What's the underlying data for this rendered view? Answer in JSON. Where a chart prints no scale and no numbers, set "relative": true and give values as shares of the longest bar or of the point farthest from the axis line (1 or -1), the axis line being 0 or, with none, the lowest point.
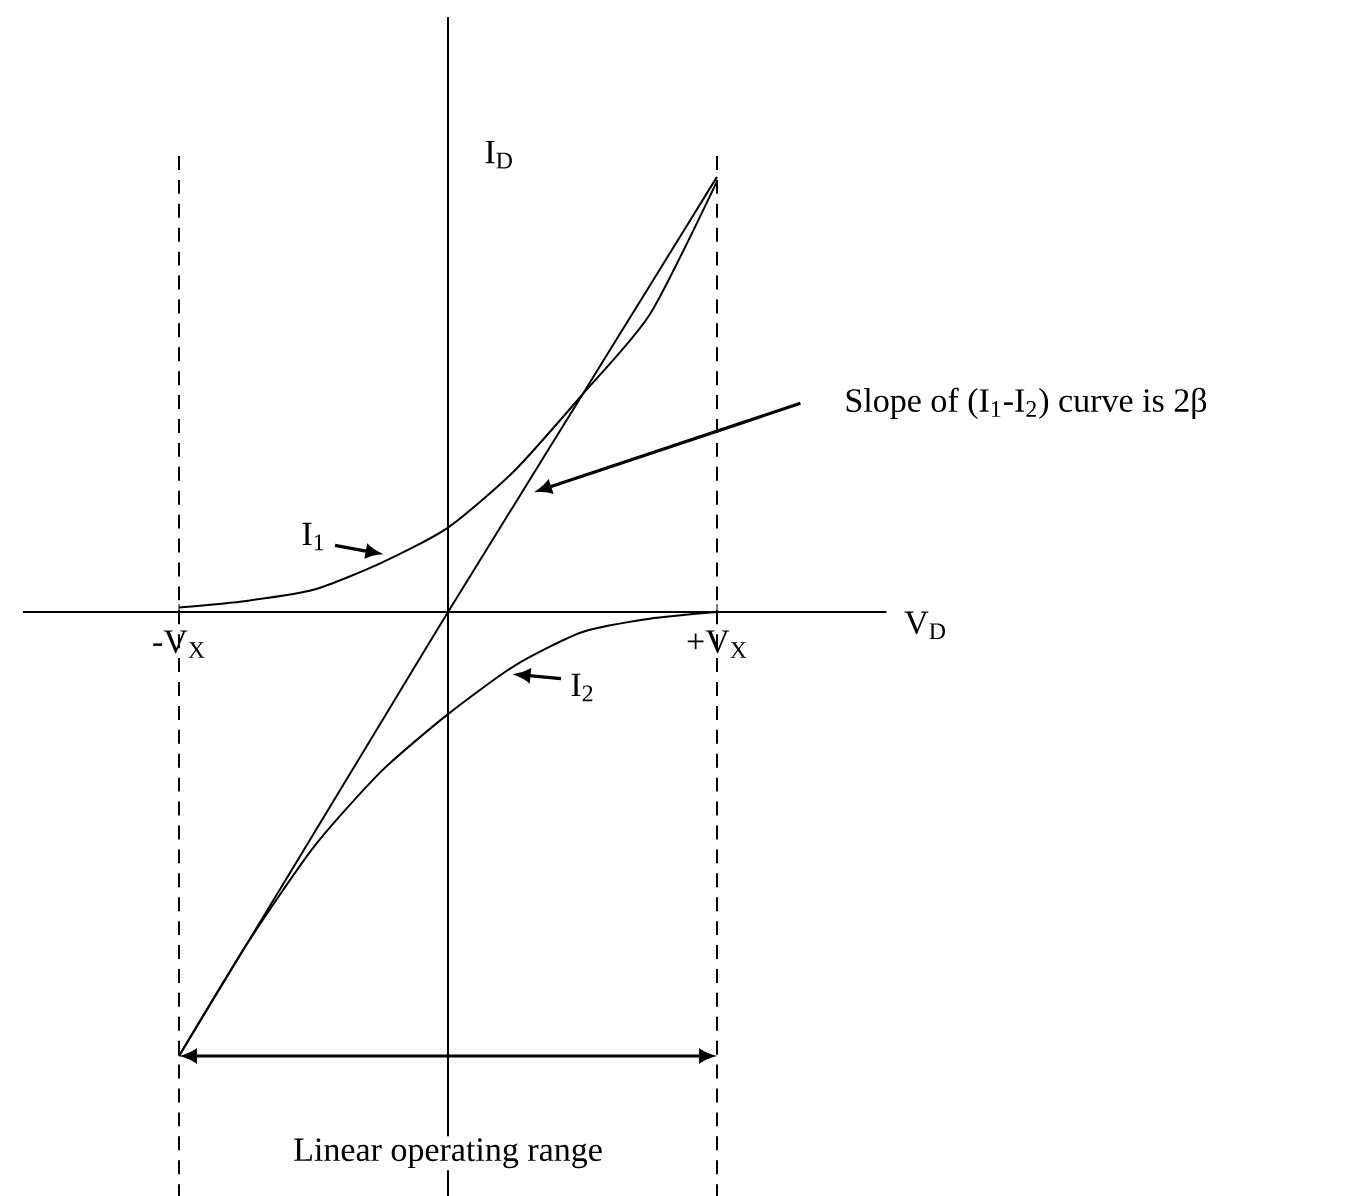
{
  "chart_data": {
    "type": "line",
    "relative": true,
    "xlabel": "V$_{D}$",
    "ylabel": "I$_{D}$",
    "categories": [
      "-V$_{X}$",
      null,
      null,
      null,
      null,
      null,
      null,
      null,
      "+V$_{X}$"
    ],
    "series": [
      {
        "name": "I$_{1}$",
        "color": "#000000",
        "values": [
          0.01,
          0.025,
          0.05,
          0.11,
          0.19,
          0.32,
          0.49,
          0.67,
          0.97
        ]
      },
      {
        "name": "I$_{2}$",
        "color": "#000000",
        "values": [
          -1,
          -0.75,
          -0.53,
          -0.36,
          -0.23,
          -0.12,
          -0.045,
          -0.015,
          0
        ]
      },
      {
        "color": "#000000",
        "values": [
          -1,
          -0.75,
          -0.5,
          -0.25,
          0,
          0.245,
          0.49,
          0.735,
          0.98
        ]
      }
    ],
    "ref_lines": [
      {
        "axis": "x",
        "value": "-V$_{X}$",
        "line_style": "dashed"
      },
      {
        "axis": "x",
        "value": "+V$_{X}$",
        "line_style": "dashed"
      }
    ],
    "annotations": [
      "Slope of (I$_{1}$-I$_{2}$) curve is 2β",
      "Linear operating range"
    ],
    "marker": "none",
    "line_style": "solid"
  }
}
